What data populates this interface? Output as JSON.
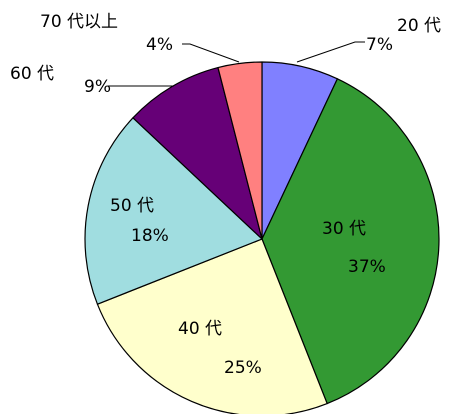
{
  "chart_data": {
    "type": "pie",
    "title": "",
    "start_angle_deg": 0,
    "direction": "clockwise",
    "slices": [
      {
        "name": "20 代",
        "value": 7,
        "label": "7%",
        "color": "#8080ff"
      },
      {
        "name": "30 代",
        "value": 37,
        "label": "37%",
        "color": "#339933"
      },
      {
        "name": "40 代",
        "value": 25,
        "label": "25%",
        "color": "#ffffcc"
      },
      {
        "name": "50 代",
        "value": 18,
        "label": "18%",
        "color": "#a0dde0"
      },
      {
        "name": "60 代",
        "value": 9,
        "label": "9%",
        "color": "#660077"
      },
      {
        "name": "70 代以上",
        "value": 4,
        "label": "4%",
        "color": "#ff8080"
      }
    ]
  }
}
